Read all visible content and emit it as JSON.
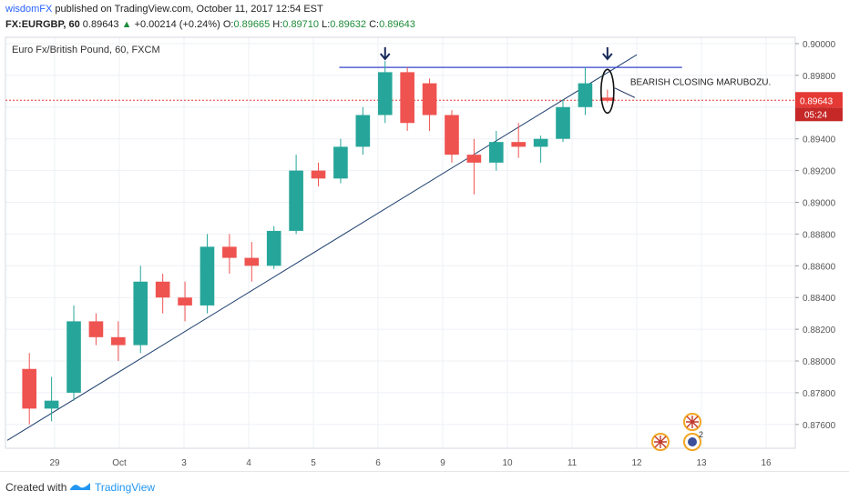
{
  "header": {
    "author": "wisdomFX",
    "published": "published on TradingView.com, October 11, 2017 12:54 EST",
    "symbol": "FX:EURGBP, 60",
    "price": "0.89643",
    "arrow": "▲",
    "change": "+0.00214 (+0.24%)",
    "o_label": "O:",
    "o_val": "0.89665",
    "h_label": "H:",
    "h_val": "0.89710",
    "l_label": "L:",
    "l_val": "0.89632",
    "c_label": "C:",
    "c_val": "0.89643"
  },
  "footer": {
    "created": "Created with",
    "brand": "TradingView"
  },
  "colors": {
    "up_candle": "#26a69a",
    "down_candle": "#ef5350",
    "trendline": "#1f3f6e",
    "resistance": "#3344cc",
    "price_line": "#e53935",
    "grid": "#eef1f6"
  },
  "chart_data": {
    "type": "candlestick",
    "title": "Euro Fx/British Pound, 60, FXCM",
    "ylim": [
      0.8745,
      0.9004
    ],
    "y_ticks": [
      "0.90000",
      "0.89800",
      "0.89600",
      "0.89400",
      "0.89200",
      "0.89000",
      "0.88800",
      "0.88600",
      "0.88400",
      "0.88200",
      "0.88000",
      "0.87800",
      "0.87600"
    ],
    "x_ticks": [
      "29",
      "Oct",
      "3",
      "4",
      "5",
      "6",
      "9",
      "10",
      "11",
      "12",
      "13",
      "16"
    ],
    "last_price": "0.89643",
    "countdown": "05:24",
    "annotation": "BEARISH CLOSING MARUBOZU.",
    "resistance_level": 0.8985,
    "trendline": {
      "from": [
        "29",
        0.875
      ],
      "to": [
        "12",
        0.8993
      ]
    },
    "series": [
      {
        "segment": "29",
        "open": 0.8795,
        "high": 0.8805,
        "low": 0.876,
        "close": 0.877
      },
      {
        "segment": "29",
        "open": 0.877,
        "high": 0.879,
        "low": 0.8762,
        "close": 0.8775
      },
      {
        "segment": "Oct",
        "open": 0.878,
        "high": 0.8835,
        "low": 0.8775,
        "close": 0.8825
      },
      {
        "segment": "Oct",
        "open": 0.8825,
        "high": 0.883,
        "low": 0.881,
        "close": 0.8815
      },
      {
        "segment": "Oct",
        "open": 0.8815,
        "high": 0.8825,
        "low": 0.88,
        "close": 0.881
      },
      {
        "segment": "2",
        "open": 0.881,
        "high": 0.886,
        "low": 0.8805,
        "close": 0.885
      },
      {
        "segment": "2",
        "open": 0.885,
        "high": 0.8855,
        "low": 0.883,
        "close": 0.884
      },
      {
        "segment": "3",
        "open": 0.884,
        "high": 0.885,
        "low": 0.8825,
        "close": 0.8835
      },
      {
        "segment": "3",
        "open": 0.8835,
        "high": 0.888,
        "low": 0.883,
        "close": 0.8872
      },
      {
        "segment": "4",
        "open": 0.8872,
        "high": 0.888,
        "low": 0.8855,
        "close": 0.8865
      },
      {
        "segment": "4",
        "open": 0.8865,
        "high": 0.8875,
        "low": 0.885,
        "close": 0.886
      },
      {
        "segment": "5",
        "open": 0.886,
        "high": 0.8885,
        "low": 0.8858,
        "close": 0.8882
      },
      {
        "segment": "5",
        "open": 0.8882,
        "high": 0.893,
        "low": 0.888,
        "close": 0.892
      },
      {
        "segment": "5",
        "open": 0.892,
        "high": 0.8925,
        "low": 0.891,
        "close": 0.8915
      },
      {
        "segment": "6",
        "open": 0.8915,
        "high": 0.894,
        "low": 0.8912,
        "close": 0.8935
      },
      {
        "segment": "6",
        "open": 0.8935,
        "high": 0.896,
        "low": 0.893,
        "close": 0.8955
      },
      {
        "segment": "6",
        "open": 0.8955,
        "high": 0.8989,
        "low": 0.895,
        "close": 0.8982
      },
      {
        "segment": "9",
        "open": 0.8982,
        "high": 0.8985,
        "low": 0.8945,
        "close": 0.895
      },
      {
        "segment": "9",
        "open": 0.8975,
        "high": 0.8978,
        "low": 0.8945,
        "close": 0.8955
      },
      {
        "segment": "9",
        "open": 0.8955,
        "high": 0.8958,
        "low": 0.8925,
        "close": 0.893
      },
      {
        "segment": "10",
        "open": 0.893,
        "high": 0.894,
        "low": 0.8905,
        "close": 0.8925
      },
      {
        "segment": "10",
        "open": 0.8925,
        "high": 0.8945,
        "low": 0.892,
        "close": 0.8938
      },
      {
        "segment": "10",
        "open": 0.8938,
        "high": 0.895,
        "low": 0.8928,
        "close": 0.8935
      },
      {
        "segment": "11",
        "open": 0.8935,
        "high": 0.8942,
        "low": 0.8925,
        "close": 0.894
      },
      {
        "segment": "11",
        "open": 0.894,
        "high": 0.8965,
        "low": 0.8938,
        "close": 0.896
      },
      {
        "segment": "11",
        "open": 0.896,
        "high": 0.8985,
        "low": 0.8955,
        "close": 0.8975
      },
      {
        "segment": "11",
        "open": 0.8966,
        "high": 0.8971,
        "low": 0.8963,
        "close": 0.8964
      }
    ]
  }
}
